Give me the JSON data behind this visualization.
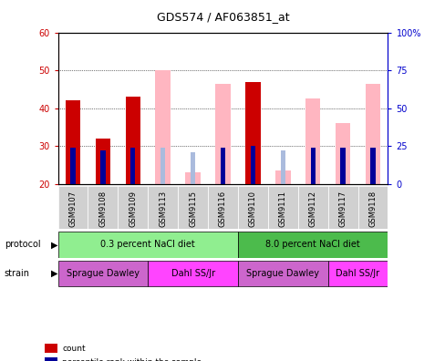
{
  "title": "GDS574 / AF063851_at",
  "samples": [
    "GSM9107",
    "GSM9108",
    "GSM9109",
    "GSM9113",
    "GSM9115",
    "GSM9116",
    "GSM9110",
    "GSM9111",
    "GSM9112",
    "GSM9117",
    "GSM9118"
  ],
  "count_values": [
    42,
    32,
    43,
    0,
    0,
    0,
    47,
    0,
    0,
    0,
    0
  ],
  "percentile_values": [
    24,
    22,
    24,
    0,
    0,
    24,
    25,
    0,
    24,
    24,
    24
  ],
  "absent_value_values": [
    0,
    0,
    0,
    50,
    23,
    46.5,
    0,
    23.5,
    42.5,
    36,
    46.5
  ],
  "absent_rank_values": [
    0,
    0,
    0,
    24,
    21,
    24,
    0,
    22,
    24,
    24,
    24
  ],
  "ylim_left": [
    20,
    60
  ],
  "ylim_right": [
    0,
    100
  ],
  "yticks_left": [
    20,
    30,
    40,
    50,
    60
  ],
  "yticks_right": [
    0,
    25,
    50,
    75,
    100
  ],
  "protocol_groups": [
    {
      "label": "0.3 percent NaCl diet",
      "start": 0,
      "end": 6,
      "color": "#90EE90"
    },
    {
      "label": "8.0 percent NaCl diet",
      "start": 6,
      "end": 11,
      "color": "#4CBB4C"
    }
  ],
  "strain_groups": [
    {
      "label": "Sprague Dawley",
      "start": 0,
      "end": 3,
      "color": "#CC66CC"
    },
    {
      "label": "Dahl SS/Jr",
      "start": 3,
      "end": 6,
      "color": "#FF44FF"
    },
    {
      "label": "Sprague Dawley",
      "start": 6,
      "end": 9,
      "color": "#CC66CC"
    },
    {
      "label": "Dahl SS/Jr",
      "start": 9,
      "end": 11,
      "color": "#FF44FF"
    }
  ],
  "count_color": "#CC0000",
  "percentile_color": "#000099",
  "absent_value_color": "#FFB6C1",
  "absent_rank_color": "#AABBDD",
  "background_color": "#ffffff",
  "label_color_left": "#CC0000",
  "label_color_right": "#0000CC"
}
